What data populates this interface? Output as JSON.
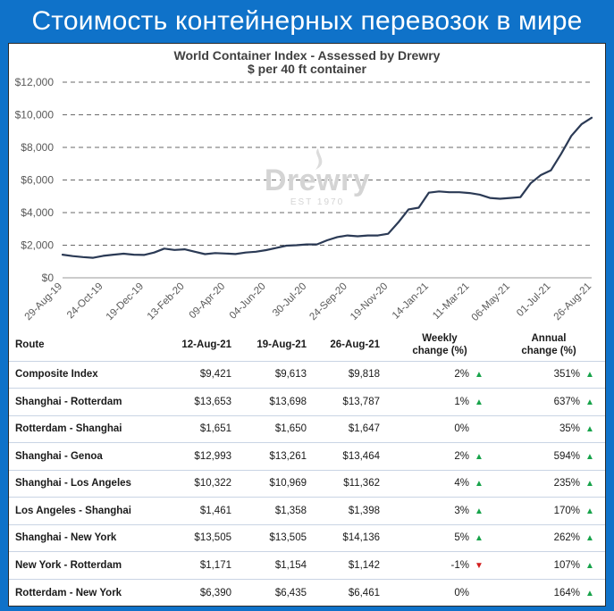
{
  "banner": {
    "title": "Стоимость контейнерных перевозок в мире"
  },
  "chart_data": {
    "type": "line",
    "title": "World Container Index - Assessed by Drewry",
    "subtitle": "$ per 40 ft container",
    "xlabel": "",
    "ylabel": "",
    "ylim": [
      0,
      12000
    ],
    "yticks": [
      0,
      2000,
      4000,
      6000,
      8000,
      10000,
      12000
    ],
    "ytick_labels": [
      "$0",
      "$2,000",
      "$4,000",
      "$6,000",
      "$8,000",
      "$10,000",
      "$12,000"
    ],
    "xlim": [
      "2019-08-29",
      "2021-08-26"
    ],
    "xtick_labels": [
      "29-Aug-19",
      "24-Oct-19",
      "19-Dec-19",
      "13-Feb-20",
      "09-Apr-20",
      "04-Jun-20",
      "30-Jul-20",
      "24-Sep-20",
      "19-Nov-20",
      "14-Jan-21",
      "11-Mar-21",
      "06-May-21",
      "01-Jul-21",
      "26-Aug-21"
    ],
    "grid": "horizontal-dashed",
    "line_color": "#2b3a55",
    "watermark": {
      "text": "Drewry",
      "est": "EST 1970"
    },
    "series": [
      {
        "name": "",
        "x": [
          "2019-08-29",
          "2019-09-12",
          "2019-09-26",
          "2019-10-10",
          "2019-10-24",
          "2019-11-07",
          "2019-11-21",
          "2019-12-05",
          "2019-12-19",
          "2020-01-02",
          "2020-01-16",
          "2020-01-30",
          "2020-02-13",
          "2020-02-27",
          "2020-03-12",
          "2020-03-26",
          "2020-04-09",
          "2020-04-23",
          "2020-05-07",
          "2020-05-21",
          "2020-06-04",
          "2020-06-18",
          "2020-07-02",
          "2020-07-16",
          "2020-07-30",
          "2020-08-13",
          "2020-08-27",
          "2020-09-10",
          "2020-09-24",
          "2020-10-08",
          "2020-10-22",
          "2020-11-05",
          "2020-11-19",
          "2020-12-03",
          "2020-12-17",
          "2020-12-31",
          "2021-01-14",
          "2021-01-28",
          "2021-02-11",
          "2021-02-25",
          "2021-03-11",
          "2021-03-25",
          "2021-04-08",
          "2021-04-22",
          "2021-05-06",
          "2021-05-20",
          "2021-06-03",
          "2021-06-17",
          "2021-07-01",
          "2021-07-15",
          "2021-07-29",
          "2021-08-12",
          "2021-08-26"
        ],
        "values": [
          1420,
          1330,
          1270,
          1230,
          1350,
          1420,
          1480,
          1420,
          1400,
          1550,
          1790,
          1710,
          1750,
          1600,
          1450,
          1520,
          1490,
          1460,
          1550,
          1600,
          1700,
          1830,
          1970,
          2000,
          2050,
          2050,
          2300,
          2500,
          2600,
          2550,
          2600,
          2600,
          2700,
          3400,
          4200,
          4300,
          5220,
          5300,
          5250,
          5250,
          5200,
          5100,
          4900,
          4850,
          4900,
          4950,
          5800,
          6300,
          6600,
          7600,
          8700,
          9421,
          9818
        ]
      }
    ]
  },
  "table": {
    "headers": {
      "route": "Route",
      "d1": "12-Aug-21",
      "d2": "19-Aug-21",
      "d3": "26-Aug-21",
      "weekly": [
        "Weekly",
        "change (%)"
      ],
      "annual": [
        "Annual",
        "change (%)"
      ]
    },
    "rows": [
      {
        "route": "Composite Index",
        "d1": "$9,421",
        "d2": "$9,613",
        "d3": "$9,818",
        "weekly": "2%",
        "weekly_dir": "up",
        "annual": "351%",
        "annual_dir": "up"
      },
      {
        "route": "Shanghai - Rotterdam",
        "d1": "$13,653",
        "d2": "$13,698",
        "d3": "$13,787",
        "weekly": "1%",
        "weekly_dir": "up",
        "annual": "637%",
        "annual_dir": "up"
      },
      {
        "route": "Rotterdam - Shanghai",
        "d1": "$1,651",
        "d2": "$1,650",
        "d3": "$1,647",
        "weekly": "0%",
        "weekly_dir": "none",
        "annual": "35%",
        "annual_dir": "up"
      },
      {
        "route": "Shanghai - Genoa",
        "d1": "$12,993",
        "d2": "$13,261",
        "d3": "$13,464",
        "weekly": "2%",
        "weekly_dir": "up",
        "annual": "594%",
        "annual_dir": "up"
      },
      {
        "route": "Shanghai - Los Angeles",
        "d1": "$10,322",
        "d2": "$10,969",
        "d3": "$11,362",
        "weekly": "4%",
        "weekly_dir": "up",
        "annual": "235%",
        "annual_dir": "up"
      },
      {
        "route": "Los Angeles - Shanghai",
        "d1": "$1,461",
        "d2": "$1,358",
        "d3": "$1,398",
        "weekly": "3%",
        "weekly_dir": "up",
        "annual": "170%",
        "annual_dir": "up"
      },
      {
        "route": "Shanghai - New York",
        "d1": "$13,505",
        "d2": "$13,505",
        "d3": "$14,136",
        "weekly": "5%",
        "weekly_dir": "up",
        "annual": "262%",
        "annual_dir": "up"
      },
      {
        "route": "New York - Rotterdam",
        "d1": "$1,171",
        "d2": "$1,154",
        "d3": "$1,142",
        "weekly": "-1%",
        "weekly_dir": "down",
        "annual": "107%",
        "annual_dir": "up"
      },
      {
        "route": "Rotterdam - New York",
        "d1": "$6,390",
        "d2": "$6,435",
        "d3": "$6,461",
        "weekly": "0%",
        "weekly_dir": "none",
        "annual": "164%",
        "annual_dir": "up"
      }
    ]
  }
}
